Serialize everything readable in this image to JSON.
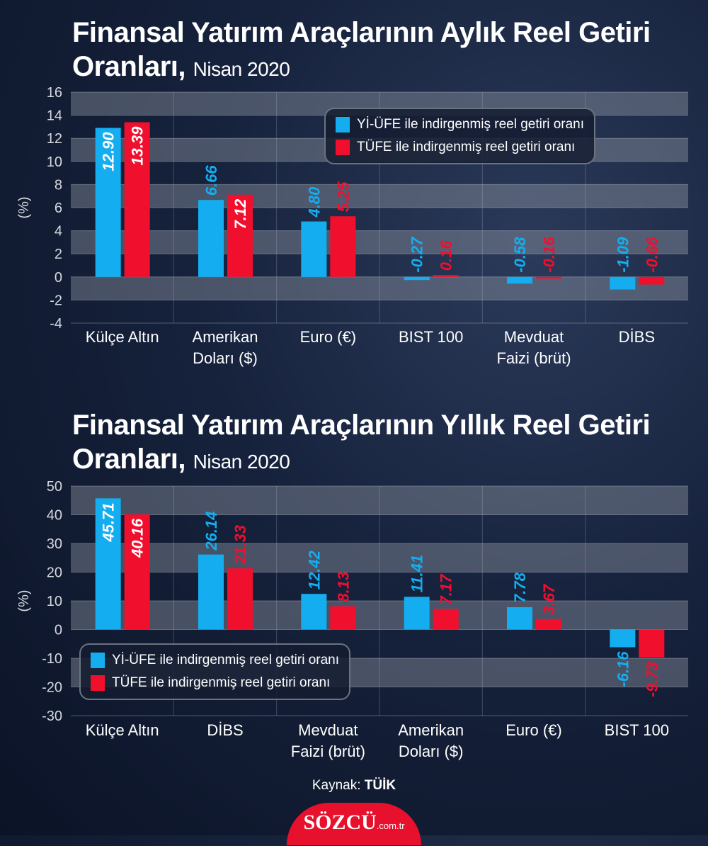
{
  "colors": {
    "yi_ufe": "#14aef0",
    "tufe": "#f0102e",
    "background": "#16223c"
  },
  "legend": [
    "Yİ-ÜFE ile indirgenmiş reel getiri oranı",
    "TÜFE ile indirgenmiş reel getiri oranı"
  ],
  "chart_data": [
    {
      "type": "bar",
      "title": "Finansal Yatırım Araçlarının Aylık Reel Getiri Oranları,",
      "subtitle": "Nisan 2020",
      "ylabel": "(%)",
      "ylim": [
        -4,
        16
      ],
      "yticks": [
        16,
        14,
        12,
        10,
        8,
        6,
        4,
        2,
        0,
        -2,
        -4
      ],
      "categories": [
        [
          "Külçe Altın"
        ],
        [
          "Amerikan",
          "Doları ($)"
        ],
        [
          "Euro (€)"
        ],
        [
          "BIST 100"
        ],
        [
          "Mevduat",
          "Faizi (brüt)"
        ],
        [
          "DİBS"
        ]
      ],
      "series": [
        {
          "name": "Yİ-ÜFE ile indirgenmiş reel getiri oranı",
          "values": [
            12.9,
            6.66,
            4.8,
            -0.27,
            -0.58,
            -1.09
          ],
          "labels": [
            "12.90",
            "6.66",
            "4.80",
            "-0.27",
            "-0.58",
            "-1.09"
          ]
        },
        {
          "name": "TÜFE ile indirgenmiş reel getiri oranı",
          "values": [
            13.39,
            7.12,
            5.25,
            0.16,
            -0.16,
            -0.66
          ],
          "labels": [
            "13.39",
            "7.12",
            "5.25",
            "0.16",
            "-0.16",
            "-0.66"
          ]
        }
      ],
      "legend_position": "top-right"
    },
    {
      "type": "bar",
      "title": "Finansal Yatırım Araçlarının Yıllık Reel Getiri Oranları,",
      "subtitle": "Nisan 2020",
      "ylabel": "(%)",
      "ylim": [
        -30,
        50
      ],
      "yticks": [
        50,
        40,
        30,
        20,
        10,
        0,
        -10,
        -20,
        -30
      ],
      "categories": [
        [
          "Külçe Altın"
        ],
        [
          "DİBS"
        ],
        [
          "Mevduat",
          "Faizi (brüt)"
        ],
        [
          "Amerikan",
          "Doları ($)"
        ],
        [
          "Euro (€)"
        ],
        [
          "BIST 100"
        ]
      ],
      "series": [
        {
          "name": "Yİ-ÜFE ile indirgenmiş reel getiri oranı",
          "values": [
            45.71,
            26.14,
            12.42,
            11.41,
            7.78,
            -6.16
          ],
          "labels": [
            "45.71",
            "26.14",
            "12.42",
            "11.41",
            "7.78",
            "-6.16"
          ]
        },
        {
          "name": "TÜFE ile indirgenmiş reel getiri oranı",
          "values": [
            40.16,
            21.33,
            8.13,
            7.17,
            3.67,
            -9.73
          ],
          "labels": [
            "40.16",
            "21.33",
            "8.13",
            "7.17",
            "3.67",
            "-9.73"
          ]
        }
      ],
      "legend_position": "bottom-left"
    }
  ],
  "footer": {
    "source_label": "Kaynak:",
    "source_value": "TÜİK"
  },
  "logo": {
    "name": "SÖZCÜ",
    "domain": ".com.tr"
  }
}
